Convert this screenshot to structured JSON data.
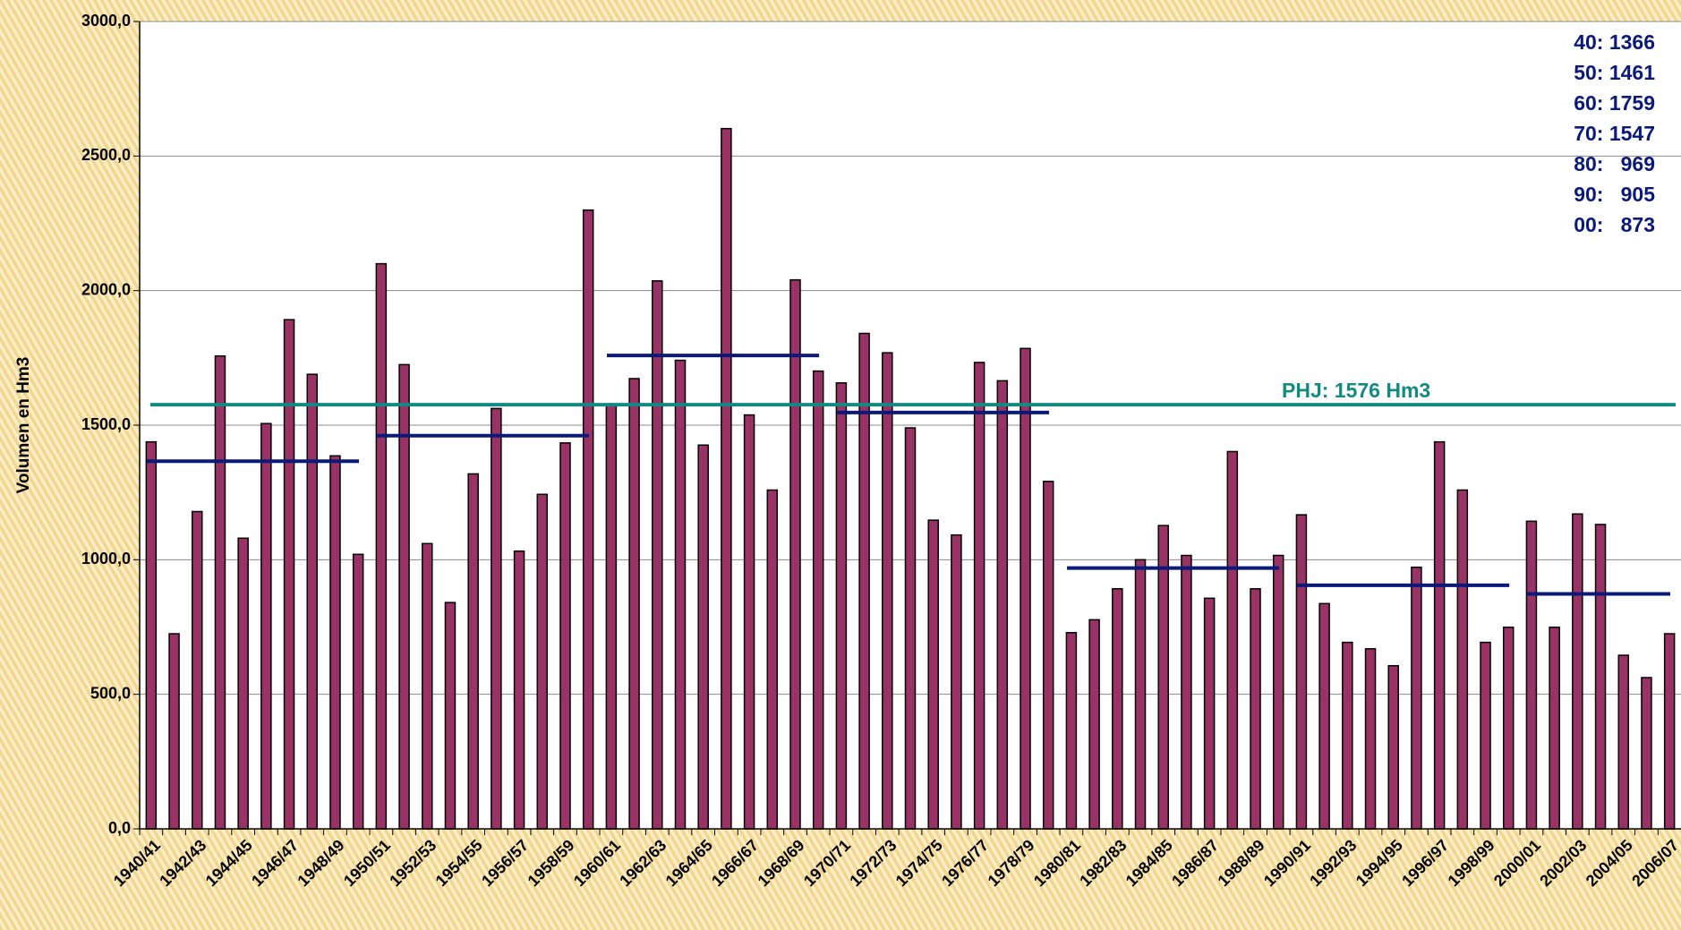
{
  "chart_data": {
    "type": "bar",
    "y_axis_label": "Volumen en Hm3",
    "categories": [
      "1940/41",
      null,
      "1942/43",
      null,
      "1944/45",
      null,
      "1946/47",
      null,
      "1948/49",
      null,
      "1950/51",
      null,
      "1952/53",
      null,
      "1954/55",
      null,
      "1956/57",
      null,
      "1958/59",
      null,
      "1960/61",
      null,
      "1962/63",
      null,
      "1964/65",
      null,
      "1966/67",
      null,
      "1968/69",
      null,
      "1970/71",
      null,
      "1972/73",
      null,
      "1974/75",
      null,
      "1976/77",
      null,
      "1978/79",
      null,
      "1980/81",
      null,
      "1982/83",
      null,
      "1984/85",
      null,
      "1986/87",
      null,
      "1988/89",
      null,
      "1990/91",
      null,
      "1992/93",
      null,
      "1994/95",
      null,
      "1996/97",
      null,
      "1998/99",
      null,
      "2000/01",
      null,
      "2002/03",
      null,
      "2004/05",
      null,
      "2006/07"
    ],
    "values": [
      1438,
      725,
      1179,
      1757,
      1080,
      1506,
      1892,
      1689,
      1386,
      1020,
      2100,
      1725,
      1060,
      841,
      1319,
      1562,
      1032,
      1243,
      1434,
      2299,
      1574,
      1673,
      2036,
      1741,
      1426,
      2602,
      1538,
      1259,
      2040,
      1701,
      1657,
      1841,
      1769,
      1490,
      1147,
      1092,
      1733,
      1665,
      1785,
      1291,
      729,
      777,
      892,
      1000,
      1127,
      1016,
      857,
      1402,
      892,
      1016,
      1167,
      837,
      693,
      669,
      606,
      972,
      1438,
      1259,
      693,
      749,
      1143,
      749,
      1170,
      1131,
      645,
      562,
      725
    ],
    "color": "#993366",
    "ylim": [
      0,
      3000
    ],
    "yticks": [
      {
        "value": 0,
        "label": "0,0"
      },
      {
        "value": 500,
        "label": "500,0"
      },
      {
        "value": 1000,
        "label": "1000,0"
      },
      {
        "value": 1500,
        "label": "1500,0"
      },
      {
        "value": 2000,
        "label": "2000,0"
      },
      {
        "value": 2500,
        "label": "2500,0"
      },
      {
        "value": 3000,
        "label": "3000,0"
      }
    ],
    "grid": true,
    "reference_line": {
      "value": 1576,
      "label": "PHJ: 1576 Hm3",
      "color": "#138a80"
    },
    "decade_averages": {
      "color": "#0a1a7a",
      "values": [
        1366,
        1461,
        1759,
        1547,
        969,
        905,
        873
      ],
      "value_labels": [
        "40: 1366",
        "50: 1461",
        "60: 1759",
        "70: 1547",
        "80:   969",
        "90:   905",
        "00:   873"
      ]
    }
  }
}
